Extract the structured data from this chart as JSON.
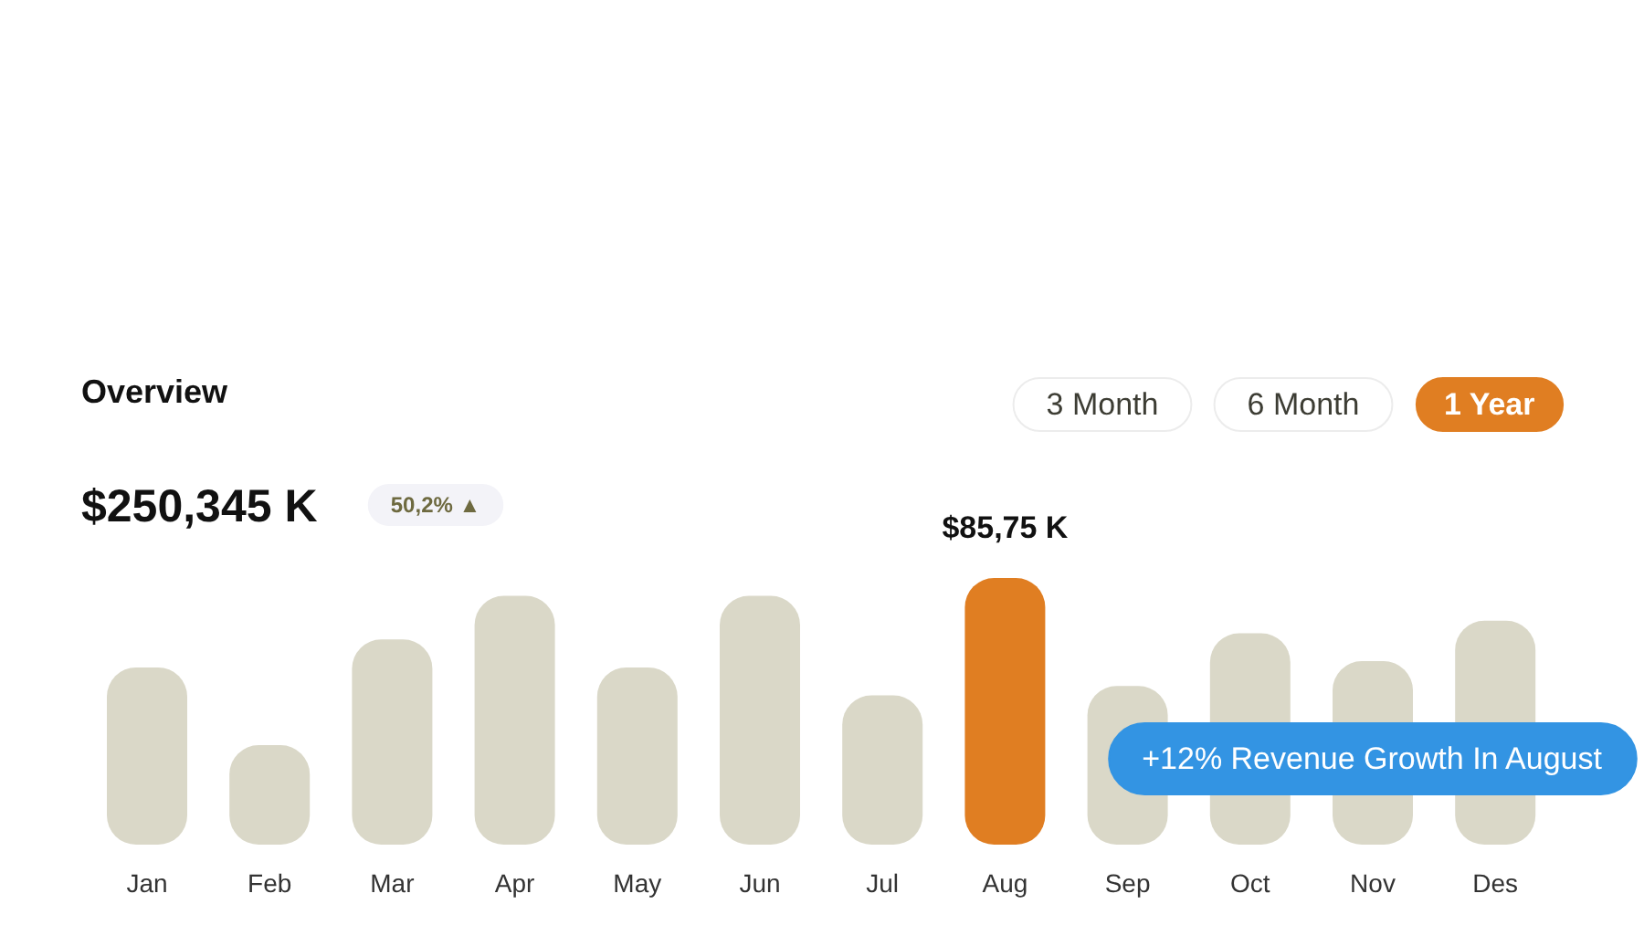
{
  "chart_data": {
    "type": "bar",
    "title": "Overview",
    "subtitle": "$250,345 K",
    "categories": [
      "Jan",
      "Feb",
      "Mar",
      "Apr",
      "May",
      "Jun",
      "Jul",
      "Aug",
      "Sep",
      "Oct",
      "Nov",
      "Des"
    ],
    "values": [
      57,
      32,
      66,
      80,
      57,
      80,
      48,
      85.75,
      51,
      68,
      59,
      72
    ],
    "colors": [
      "#dad8c8",
      "#dad8c8",
      "#dad8c8",
      "#dad8c8",
      "#dad8c8",
      "#dad8c8",
      "#dad8c8",
      "#e07e22",
      "#dad8c8",
      "#dad8c8",
      "#dad8c8",
      "#dad8c8"
    ],
    "value_labels": [
      null,
      null,
      null,
      null,
      null,
      null,
      null,
      "$85,75 K",
      null,
      null,
      null,
      null
    ],
    "annotations": [
      "3 Month",
      "6 Month",
      "1 Year",
      "50,2% ▲",
      "+12% Revenue Growth In August"
    ]
  }
}
